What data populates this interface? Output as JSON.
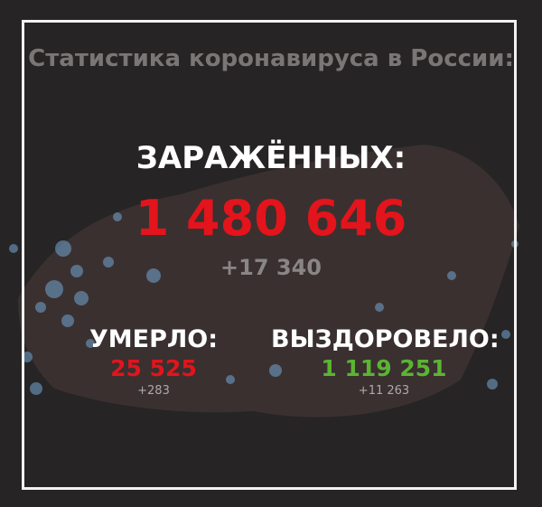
{
  "title": "Статистика коронавируса в России:",
  "infected": {
    "label": "ЗАРАЖЁННЫХ:",
    "value": "1 480 646",
    "delta": "+17 340"
  },
  "deaths": {
    "label": "УМЕРЛО:",
    "value": "25 525",
    "delta": "+283"
  },
  "recovered": {
    "label": "ВЫЗДОРОВЕЛО:",
    "value": "1 119 251",
    "delta": "+11 263"
  },
  "colors": {
    "background": "#262424",
    "infected": "#e3141b",
    "deaths": "#e3141b",
    "recovered": "#5bb432",
    "dots": "#6f9cc4"
  }
}
